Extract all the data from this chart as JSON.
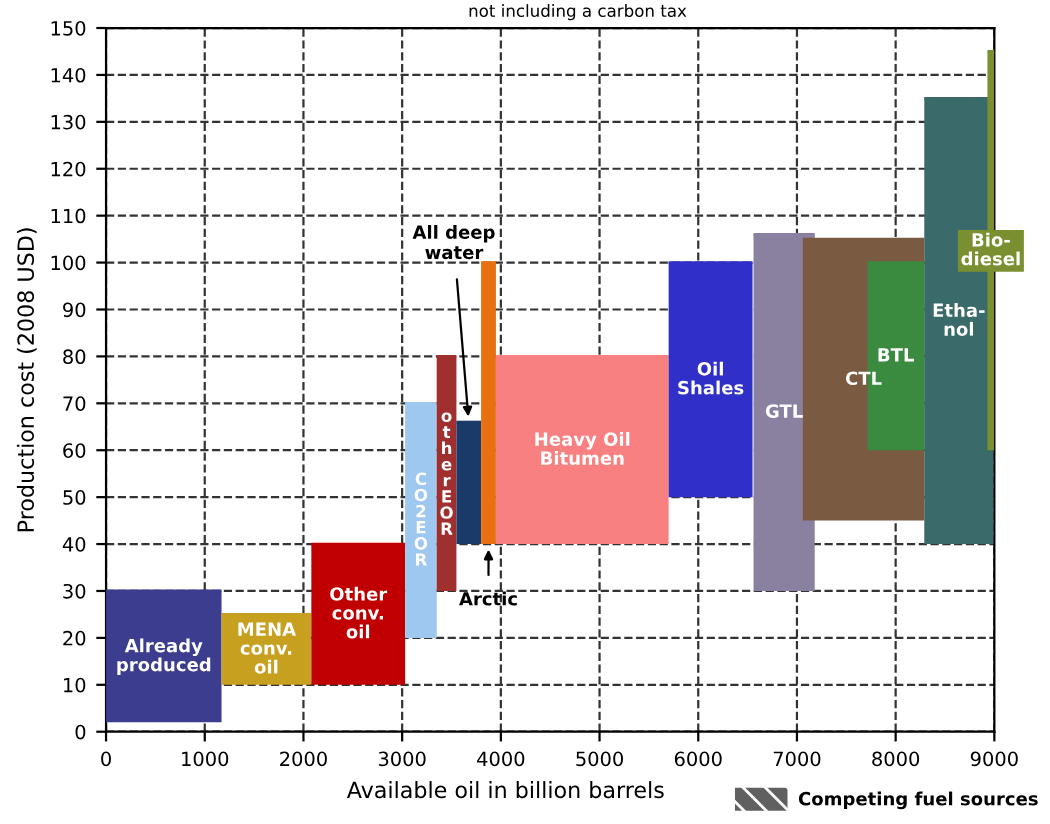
{
  "chart_data": {
    "type": "bar",
    "title": "not including a carbon tax",
    "xlabel": "Available oil in billion barrels",
    "ylabel": "Production cost (2008 USD)",
    "series": [
      {
        "name": "Already\nproduced",
        "color": "#3d3d8f",
        "x": [
          585
        ],
        "base": [
          2
        ],
        "values": [
          28
        ],
        "xerrors": [
          [
            0,
            1170
          ]
        ]
      },
      {
        "name": "MENA\nconv.\noil",
        "color": "#c8a020",
        "x": [
          1625
        ],
        "base": [
          10
        ],
        "values": [
          15
        ],
        "xerrors": [
          [
            1170,
            2080
          ]
        ]
      },
      {
        "name": "Other\nconv.\noil",
        "color": "#c00000",
        "x": [
          2555
        ],
        "base": [
          10
        ],
        "values": [
          30
        ],
        "xerrors": [
          [
            2080,
            3030
          ]
        ]
      },
      {
        "name": "CO2 EOR",
        "color": "#9ec8f0",
        "x": [
          3190
        ],
        "base": [
          20
        ],
        "values": [
          50
        ],
        "xerrors": [
          [
            3030,
            3350
          ]
        ]
      },
      {
        "name": "other EOR",
        "color": "#a03030",
        "x": [
          3450
        ],
        "base": [
          30
        ],
        "values": [
          50
        ],
        "xerrors": [
          [
            3350,
            3550
          ]
        ]
      },
      {
        "color": "#1a3a6a",
        "x": [
          3675
        ],
        "base": [
          40
        ],
        "values": [
          26
        ],
        "xerrors": [
          [
            3550,
            3800
          ]
        ]
      },
      {
        "color": "#e87010",
        "x": [
          3875
        ],
        "base": [
          40
        ],
        "values": [
          60
        ],
        "xerrors": [
          [
            3800,
            3950
          ]
        ]
      },
      {
        "name": "Heavy Oil\nBitumen",
        "color": "#f88080",
        "x": [
          4825
        ],
        "base": [
          40
        ],
        "values": [
          40
        ],
        "xerrors": [
          [
            3950,
            5700
          ]
        ]
      },
      {
        "name": "Oil\nShales",
        "color": "#3030c8",
        "x": [
          6125
        ],
        "base": [
          50
        ],
        "values": [
          50
        ],
        "xerrors": [
          [
            5700,
            6550
          ]
        ]
      },
      {
        "name": "GTL",
        "color": "#8a80a0",
        "x": [
          6870
        ],
        "base": [
          30
        ],
        "values": [
          76
        ],
        "xerrors": [
          [
            6560,
            7180
          ]
        ]
      },
      {
        "name": "CTL",
        "color": "#7a5a40",
        "x": [
          7675
        ],
        "base": [
          45
        ],
        "values": [
          60
        ],
        "xerrors": [
          [
            7060,
            8290
          ]
        ]
      },
      {
        "name": "BTL",
        "color": "#3a8a40",
        "x": [
          8000
        ],
        "base": [
          60
        ],
        "values": [
          40
        ],
        "xerrors": [
          [
            7715,
            8290
          ]
        ]
      },
      {
        "name": "Etha-\nnol",
        "color": "#3a6a6a",
        "x": [
          8640
        ],
        "base": [
          40
        ],
        "values": [
          95
        ],
        "xerrors": [
          [
            8290,
            8990
          ]
        ]
      },
      {
        "name": "Bio-\ndiesel",
        "color": "#7a9030",
        "x": [
          8965
        ],
        "base": [
          60
        ],
        "values": [
          85
        ],
        "xerrors": [
          [
            8930,
            9000
          ]
        ]
      }
    ],
    "annotations": [
      {
        "text": "All deep\nwater",
        "x": 3675,
        "y": 66
      },
      {
        "text": "Arctic",
        "x": 3875,
        "y": 40
      },
      "Competing fuel sources"
    ],
    "xlim": [
      0,
      9000
    ],
    "xticks": [
      0,
      1000,
      2000,
      3000,
      4000,
      5000,
      6000,
      7000,
      8000,
      9000
    ],
    "ylim": [
      0,
      150
    ],
    "yticks": [
      0,
      10,
      20,
      30,
      40,
      50,
      60,
      70,
      80,
      90,
      100,
      110,
      120,
      130,
      140,
      150
    ],
    "grid": true
  }
}
